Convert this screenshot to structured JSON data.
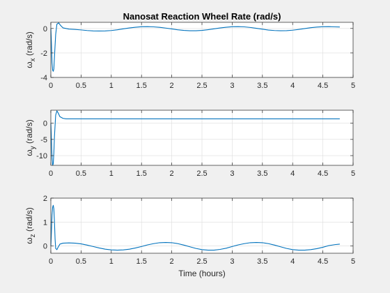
{
  "title": "Nanosat Reaction Wheel Rate (rad/s)",
  "xlabel": "Time (hours)",
  "line_color": "#0072BD",
  "grid": true,
  "chart_data": [
    {
      "type": "line",
      "ylabel_symbol": "ω",
      "ylabel_sub": "x",
      "ylabel_unit": "(rad/s)",
      "xlim": [
        0,
        5
      ],
      "ylim": [
        -4,
        0.5
      ],
      "xticks": [
        0,
        0.5,
        1,
        1.5,
        2,
        2.5,
        3,
        3.5,
        4,
        4.5,
        5
      ],
      "yticks": [
        -4,
        -2,
        0
      ],
      "x": [
        0,
        0.01,
        0.02,
        0.03,
        0.04,
        0.05,
        0.06,
        0.08,
        0.1,
        0.13,
        0.16,
        0.2,
        0.3,
        0.4,
        0.5,
        0.6,
        0.7,
        0.8,
        0.9,
        1.0,
        1.1,
        1.2,
        1.3,
        1.4,
        1.5,
        1.6,
        1.7,
        1.8,
        1.9,
        2.0,
        2.1,
        2.2,
        2.3,
        2.4,
        2.5,
        2.6,
        2.7,
        2.8,
        2.9,
        3.0,
        3.1,
        3.2,
        3.3,
        3.4,
        3.5,
        3.6,
        3.7,
        3.8,
        3.9,
        4.0,
        4.1,
        4.2,
        4.3,
        4.4,
        4.5,
        4.6,
        4.7,
        4.78
      ],
      "y": [
        0,
        -1.2,
        -2.8,
        -3.4,
        -3.5,
        -3.3,
        -2.3,
        -0.5,
        0.35,
        0.45,
        0.25,
        0.05,
        -0.05,
        -0.08,
        -0.12,
        -0.17,
        -0.2,
        -0.21,
        -0.2,
        -0.17,
        -0.11,
        -0.03,
        0.04,
        0.1,
        0.14,
        0.15,
        0.13,
        0.09,
        0.03,
        -0.04,
        -0.11,
        -0.16,
        -0.19,
        -0.19,
        -0.16,
        -0.1,
        -0.03,
        0.04,
        0.1,
        0.14,
        0.15,
        0.13,
        0.08,
        0.01,
        -0.06,
        -0.13,
        -0.17,
        -0.19,
        -0.18,
        -0.14,
        -0.08,
        -0.01,
        0.06,
        0.11,
        0.14,
        0.15,
        0.13,
        0.12
      ]
    },
    {
      "type": "line",
      "ylabel_symbol": "ω",
      "ylabel_sub": "y",
      "ylabel_unit": "(rad/s)",
      "xlim": [
        0,
        5
      ],
      "ylim": [
        -13,
        4
      ],
      "xticks": [
        0,
        0.5,
        1,
        1.5,
        2,
        2.5,
        3,
        3.5,
        4,
        4.5,
        5
      ],
      "yticks": [
        -10,
        -5,
        0
      ],
      "x": [
        0,
        0.01,
        0.02,
        0.03,
        0.04,
        0.05,
        0.06,
        0.08,
        0.1,
        0.12,
        0.15,
        0.2,
        0.25,
        0.3,
        4.78
      ],
      "y": [
        0,
        -5,
        -11,
        -13,
        -12.5,
        -9,
        -4,
        2.5,
        3.8,
        3.2,
        2,
        1.5,
        1.35,
        1.35,
        1.35
      ]
    },
    {
      "type": "line",
      "ylabel_symbol": "ω",
      "ylabel_sub": "z",
      "ylabel_unit": "(rad/s)",
      "xlim": [
        0,
        5
      ],
      "ylim": [
        -0.3,
        2
      ],
      "xticks": [
        0,
        0.5,
        1,
        1.5,
        2,
        2.5,
        3,
        3.5,
        4,
        4.5,
        5
      ],
      "yticks": [
        0,
        1,
        2
      ],
      "x": [
        0,
        0.01,
        0.02,
        0.03,
        0.04,
        0.05,
        0.06,
        0.07,
        0.08,
        0.1,
        0.12,
        0.15,
        0.2,
        0.3,
        0.4,
        0.5,
        0.6,
        0.7,
        0.8,
        0.9,
        1.0,
        1.1,
        1.2,
        1.3,
        1.4,
        1.5,
        1.6,
        1.7,
        1.8,
        1.9,
        2.0,
        2.1,
        2.2,
        2.3,
        2.4,
        2.5,
        2.6,
        2.7,
        2.8,
        2.9,
        3.0,
        3.1,
        3.2,
        3.3,
        3.4,
        3.5,
        3.6,
        3.7,
        3.8,
        3.9,
        4.0,
        4.1,
        4.2,
        4.3,
        4.4,
        4.5,
        4.6,
        4.7,
        4.78
      ],
      "y": [
        0,
        0.6,
        1.3,
        1.62,
        1.7,
        1.55,
        1.0,
        0.3,
        -0.1,
        -0.15,
        -0.05,
        0.08,
        0.12,
        0.13,
        0.12,
        0.09,
        0.04,
        -0.02,
        -0.08,
        -0.13,
        -0.16,
        -0.17,
        -0.16,
        -0.13,
        -0.08,
        -0.02,
        0.05,
        0.1,
        0.14,
        0.15,
        0.14,
        0.1,
        0.04,
        -0.03,
        -0.1,
        -0.15,
        -0.17,
        -0.17,
        -0.14,
        -0.09,
        -0.02,
        0.05,
        0.1,
        0.14,
        0.15,
        0.14,
        0.1,
        0.04,
        -0.03,
        -0.1,
        -0.15,
        -0.17,
        -0.17,
        -0.15,
        -0.11,
        -0.05,
        0.02,
        0.06,
        0.08
      ]
    }
  ]
}
